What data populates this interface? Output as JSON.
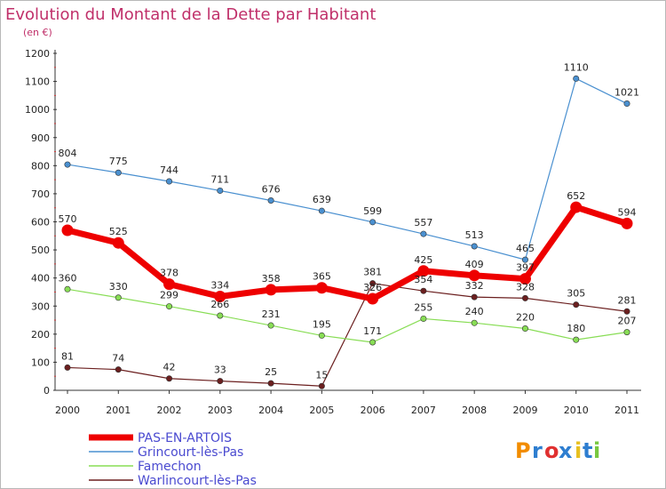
{
  "chart_data": {
    "type": "line",
    "title": "Evolution du Montant de la Dette par Habitant",
    "subtitle": "(en €)",
    "x": [
      "2000",
      "2001",
      "2002",
      "2003",
      "2004",
      "2005",
      "2006",
      "2007",
      "2008",
      "2009",
      "2010",
      "2011"
    ],
    "ylim": [
      0,
      1200
    ],
    "yticks": [
      0,
      100,
      200,
      300,
      400,
      500,
      600,
      700,
      800,
      900,
      1000,
      1100,
      1200
    ],
    "grid": false,
    "legend_position": "bottom-left",
    "series": [
      {
        "name": "PAS-EN-ARTOIS",
        "color": "#ee0000",
        "emphasis": true,
        "values": [
          570,
          525,
          378,
          334,
          358,
          365,
          326,
          425,
          409,
          397,
          652,
          594
        ]
      },
      {
        "name": "Grincourt-lès-Pas",
        "color": "#4a90d0",
        "values": [
          804,
          775,
          744,
          711,
          676,
          639,
          599,
          557,
          513,
          465,
          1110,
          1021
        ]
      },
      {
        "name": "Famechon",
        "color": "#88dd55",
        "values": [
          360,
          330,
          299,
          266,
          231,
          195,
          171,
          255,
          240,
          220,
          180,
          207
        ]
      },
      {
        "name": "Warlincourt-lès-Pas",
        "color": "#6b1f1f",
        "values": [
          81,
          74,
          42,
          33,
          25,
          15,
          381,
          354,
          332,
          328,
          305,
          281
        ]
      }
    ],
    "labels": {
      "PAS-EN-ARTOIS": [
        "570",
        "525",
        "378",
        "334",
        "358",
        "365",
        "326",
        "425",
        "409",
        "397",
        "652",
        "594"
      ],
      "Grincourt-lès-Pas": [
        "804",
        "775",
        "744",
        "711",
        "676",
        "639",
        "599",
        "557",
        "513",
        "465",
        "1110",
        "1021"
      ],
      "Famechon": [
        "360",
        "330",
        "299",
        "266",
        "231",
        "195",
        "171",
        "255",
        "240",
        "220",
        "180",
        "207"
      ],
      "Warlincourt-lès-Pas": [
        "81",
        "74",
        "42",
        "33",
        "25",
        "15",
        "381",
        "354",
        "332",
        "328",
        "305",
        "281"
      ]
    }
  },
  "logo": {
    "text": "Proxiti",
    "colors": [
      "#f28c00",
      "#2e7ed0",
      "#e03030",
      "#2e7ed0",
      "#e8c020",
      "#2e7ed0",
      "#78c840"
    ]
  }
}
